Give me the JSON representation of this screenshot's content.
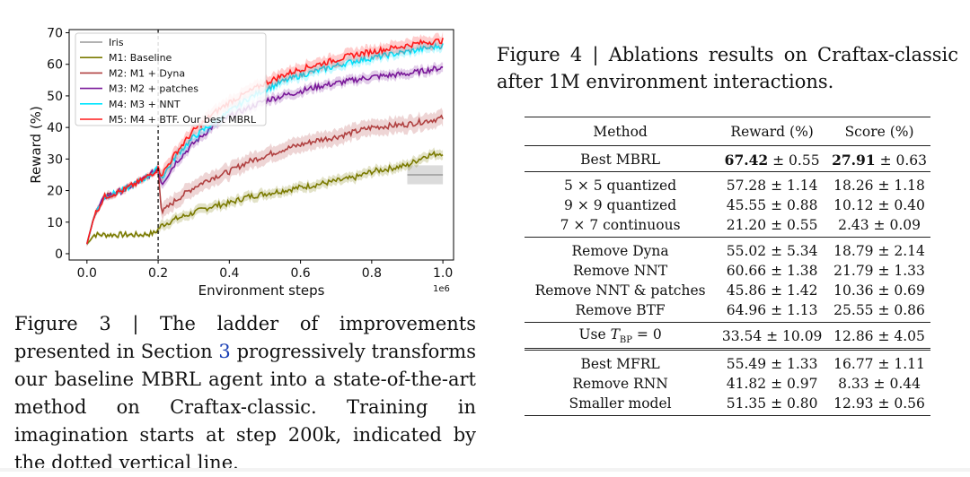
{
  "figure3": {
    "caption_prefix": "Figure 3 | The ladder of improvements presented in Section",
    "caption_ref": "3",
    "caption_suffix": "progressively transforms our baseline MBRL agent into a state-of-the-art method on Craftax-classic. Training in imagination starts at step 200k, indicated by the dotted vertical line."
  },
  "figure4": {
    "caption": "Figure 4 | Ablations results on Craftax-classic after 1M environment interactions."
  },
  "chart_data": {
    "type": "line",
    "xlabel": "Environment steps",
    "ylabel": "Reward (%)",
    "x_multiplier_label": "1e6",
    "xlim": [
      -0.05,
      1.03
    ],
    "ylim": [
      -2,
      71
    ],
    "xticks": [
      0.0,
      0.2,
      0.4,
      0.6,
      0.8,
      1.0
    ],
    "xtick_labels": [
      "0.0",
      "0.2",
      "0.4",
      "0.6",
      "0.8",
      "1.0"
    ],
    "yticks": [
      0,
      10,
      20,
      30,
      40,
      50,
      60,
      70
    ],
    "ytick_labels": [
      "0",
      "10",
      "20",
      "30",
      "40",
      "50",
      "60",
      "70"
    ],
    "vline_x": 0.2,
    "legend_position": "top-left",
    "grid": false,
    "series": [
      {
        "name": "Iris",
        "color": "#999999",
        "type": "segment",
        "x": [
          0.9,
          1.0
        ],
        "values": [
          25,
          25
        ],
        "band": [
          22,
          28
        ]
      },
      {
        "name": "M1: Baseline",
        "color": "#7a7a00",
        "x": [
          0,
          0.02,
          0.05,
          0.1,
          0.15,
          0.19,
          0.21,
          0.25,
          0.3,
          0.35,
          0.4,
          0.45,
          0.5,
          0.55,
          0.6,
          0.65,
          0.7,
          0.75,
          0.8,
          0.85,
          0.9,
          0.95,
          1.0
        ],
        "values": [
          3,
          6,
          6,
          6,
          6,
          6.5,
          9,
          11,
          13,
          15,
          16,
          18,
          19,
          20,
          21,
          22,
          23,
          24,
          26,
          27,
          28,
          31,
          32
        ],
        "band_width": 1.5
      },
      {
        "name": "M2: M1 + Dyna",
        "color": "#b04040",
        "x": [
          0,
          0.02,
          0.05,
          0.1,
          0.15,
          0.19,
          0.2,
          0.21,
          0.25,
          0.3,
          0.35,
          0.4,
          0.45,
          0.5,
          0.55,
          0.6,
          0.65,
          0.7,
          0.75,
          0.8,
          0.85,
          0.9,
          0.95,
          1.0
        ],
        "values": [
          3,
          12,
          18,
          20,
          23,
          26,
          27,
          13,
          17,
          21,
          24,
          26,
          29,
          31,
          33,
          34.5,
          36,
          37,
          38.5,
          40,
          40.5,
          41,
          42,
          43
        ],
        "band_width": 2.5
      },
      {
        "name": "M3: M2 + patches",
        "color": "#7a1a9a",
        "x": [
          0,
          0.02,
          0.05,
          0.1,
          0.15,
          0.19,
          0.2,
          0.21,
          0.25,
          0.3,
          0.35,
          0.4,
          0.45,
          0.5,
          0.55,
          0.6,
          0.65,
          0.7,
          0.75,
          0.8,
          0.85,
          0.9,
          0.95,
          1.0
        ],
        "values": [
          3,
          12,
          18,
          20,
          23,
          26,
          27,
          22,
          29,
          35,
          40,
          43.5,
          46,
          48.5,
          50,
          51.5,
          53,
          54,
          55,
          56,
          56.5,
          57,
          58,
          59
        ],
        "band_width": 1.5
      },
      {
        "name": "M4: M3 + NNT",
        "color": "#00e5ff",
        "x": [
          0,
          0.02,
          0.05,
          0.1,
          0.15,
          0.19,
          0.2,
          0.21,
          0.25,
          0.3,
          0.35,
          0.4,
          0.45,
          0.5,
          0.55,
          0.6,
          0.65,
          0.7,
          0.75,
          0.8,
          0.85,
          0.9,
          0.95,
          1.0
        ],
        "values": [
          3,
          12,
          18,
          20,
          23,
          26,
          27,
          24,
          31,
          37,
          41,
          45,
          49,
          52,
          54.5,
          56.5,
          58,
          59.5,
          61,
          62,
          63,
          64,
          65,
          66
        ],
        "band_width": 1.5
      },
      {
        "name": "M5: M4 + BTF. Our best MBRL",
        "color": "#ff1a1a",
        "x": [
          0,
          0.02,
          0.05,
          0.1,
          0.15,
          0.19,
          0.2,
          0.21,
          0.25,
          0.3,
          0.35,
          0.4,
          0.45,
          0.5,
          0.55,
          0.6,
          0.65,
          0.7,
          0.75,
          0.8,
          0.85,
          0.9,
          0.95,
          1.0
        ],
        "values": [
          3,
          12,
          18,
          20,
          23,
          26,
          27,
          25,
          32,
          39,
          44,
          48,
          51,
          54,
          56.5,
          58.5,
          60,
          61.5,
          63,
          64,
          65,
          66,
          67,
          67.5
        ],
        "band_width": 2
      }
    ]
  },
  "table": {
    "headers": [
      "Method",
      "Reward (%)",
      "Score (%)"
    ],
    "groups": [
      {
        "rows": [
          {
            "method": "Best MBRL",
            "reward_bold": "67.42",
            "reward": " ± 0.55",
            "score_bold": "27.91",
            "score": " ± 0.63"
          }
        ]
      },
      {
        "rows": [
          {
            "method": "5 × 5 quantized",
            "reward": "57.28 ± 1.14",
            "score": "18.26 ± 1.18"
          },
          {
            "method": "9 × 9 quantized",
            "reward": "45.55 ± 0.88",
            "score": "10.12 ± 0.40"
          },
          {
            "method": "7 × 7 continuous",
            "reward": "21.20 ± 0.55",
            "score": "2.43 ± 0.09"
          }
        ]
      },
      {
        "rows": [
          {
            "method": "Remove Dyna",
            "reward": "55.02 ± 5.34",
            "score": "18.79 ± 2.14"
          },
          {
            "method": "Remove NNT",
            "reward": "60.66 ± 1.38",
            "score": "21.79 ± 1.33"
          },
          {
            "method": "Remove NNT & patches",
            "reward": "45.86 ± 1.42",
            "score": "10.36 ± 0.69"
          },
          {
            "method": "Remove BTF",
            "reward": "64.96 ± 1.13",
            "score": "25.55 ± 0.86"
          }
        ]
      },
      {
        "rows": [
          {
            "method_prefix": "Use ",
            "method_var": "T",
            "method_sub": "BP",
            "method_suffix": " = 0",
            "reward": "33.54 ± 10.09",
            "score": "12.86 ± 4.05"
          }
        ]
      },
      {
        "double": true,
        "rows": [
          {
            "method": "Best MFRL",
            "reward": "55.49 ± 1.33",
            "score": "16.77 ± 1.11"
          },
          {
            "method": "Remove RNN",
            "reward": "41.82 ± 0.97",
            "score": "8.33 ± 0.44"
          },
          {
            "method": "Smaller model",
            "reward": "51.35 ± 0.80",
            "score": "12.93 ± 0.56"
          }
        ]
      }
    ]
  }
}
